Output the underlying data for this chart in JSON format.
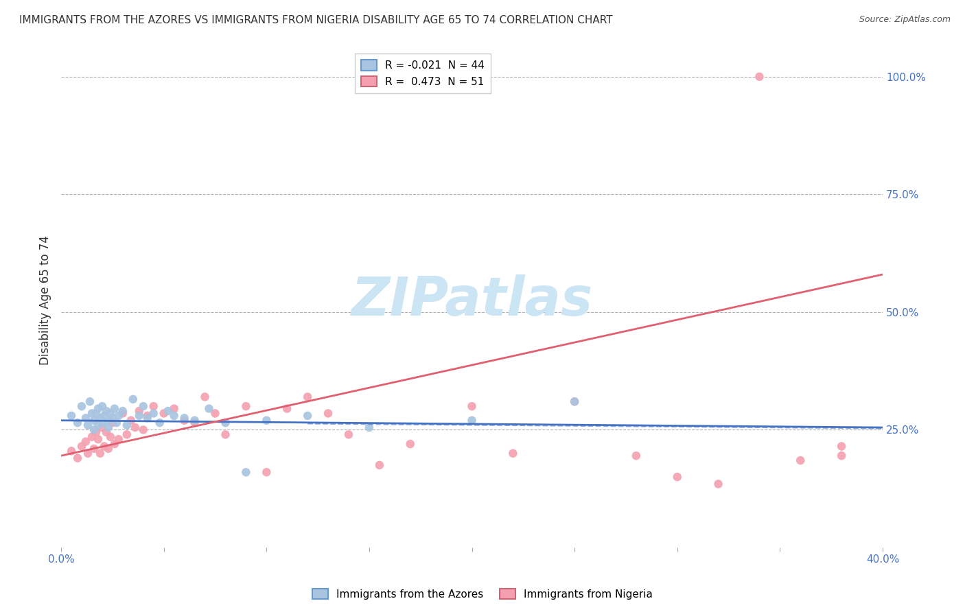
{
  "title": "IMMIGRANTS FROM THE AZORES VS IMMIGRANTS FROM NIGERIA DISABILITY AGE 65 TO 74 CORRELATION CHART",
  "source": "Source: ZipAtlas.com",
  "ylabel": "Disability Age 65 to 74",
  "legend_azores": "R = -0.021  N = 44",
  "legend_nigeria": "R =  0.473  N = 51",
  "legend_label_azores": "Immigrants from the Azores",
  "legend_label_nigeria": "Immigrants from Nigeria",
  "azores_color": "#a8c4e0",
  "nigeria_color": "#f4a0b0",
  "azores_line_color": "#4472c4",
  "nigeria_line_color": "#e06070",
  "background_color": "#ffffff",
  "watermark_color": "#cce5f5",
  "xlim": [
    0.0,
    0.4
  ],
  "ylim": [
    0.0,
    1.05
  ],
  "right_ytick_vals": [
    0.25,
    0.5,
    0.75,
    1.0
  ],
  "right_ytick_labels": [
    "25.0%",
    "50.0%",
    "75.0%",
    "100.0%"
  ],
  "gridline_y": [
    0.25,
    0.5,
    0.75,
    1.0
  ],
  "azores_scatter_x": [
    0.005,
    0.008,
    0.01,
    0.012,
    0.013,
    0.014,
    0.015,
    0.016,
    0.016,
    0.017,
    0.018,
    0.018,
    0.019,
    0.02,
    0.02,
    0.021,
    0.022,
    0.023,
    0.023,
    0.024,
    0.025,
    0.026,
    0.027,
    0.028,
    0.03,
    0.032,
    0.035,
    0.038,
    0.04,
    0.042,
    0.045,
    0.048,
    0.052,
    0.055,
    0.06,
    0.065,
    0.072,
    0.08,
    0.09,
    0.1,
    0.12,
    0.15,
    0.2,
    0.25
  ],
  "azores_scatter_y": [
    0.28,
    0.265,
    0.3,
    0.275,
    0.26,
    0.31,
    0.285,
    0.27,
    0.25,
    0.285,
    0.295,
    0.26,
    0.275,
    0.3,
    0.265,
    0.28,
    0.29,
    0.27,
    0.255,
    0.285,
    0.275,
    0.295,
    0.265,
    0.28,
    0.29,
    0.26,
    0.315,
    0.28,
    0.3,
    0.275,
    0.285,
    0.265,
    0.29,
    0.28,
    0.275,
    0.27,
    0.295,
    0.265,
    0.16,
    0.27,
    0.28,
    0.255,
    0.27,
    0.31
  ],
  "nigeria_scatter_x": [
    0.005,
    0.008,
    0.01,
    0.012,
    0.013,
    0.015,
    0.016,
    0.017,
    0.018,
    0.019,
    0.02,
    0.021,
    0.022,
    0.023,
    0.024,
    0.025,
    0.026,
    0.028,
    0.03,
    0.032,
    0.034,
    0.036,
    0.038,
    0.04,
    0.042,
    0.045,
    0.05,
    0.055,
    0.06,
    0.065,
    0.07,
    0.075,
    0.08,
    0.09,
    0.1,
    0.11,
    0.12,
    0.13,
    0.14,
    0.155,
    0.17,
    0.2,
    0.22,
    0.25,
    0.28,
    0.3,
    0.32,
    0.34,
    0.36,
    0.38,
    0.38
  ],
  "nigeria_scatter_y": [
    0.205,
    0.19,
    0.215,
    0.225,
    0.2,
    0.235,
    0.21,
    0.245,
    0.23,
    0.2,
    0.255,
    0.215,
    0.245,
    0.21,
    0.235,
    0.265,
    0.22,
    0.23,
    0.285,
    0.24,
    0.27,
    0.255,
    0.29,
    0.25,
    0.28,
    0.3,
    0.285,
    0.295,
    0.27,
    0.265,
    0.32,
    0.285,
    0.24,
    0.3,
    0.16,
    0.295,
    0.32,
    0.285,
    0.24,
    0.175,
    0.22,
    0.3,
    0.2,
    0.31,
    0.195,
    0.15,
    0.135,
    1.0,
    0.185,
    0.195,
    0.215
  ],
  "azores_line_x": [
    0.0,
    0.4
  ],
  "azores_line_y": [
    0.27,
    0.255
  ],
  "azores_line_dash": true,
  "nigeria_line_x": [
    0.0,
    0.4
  ],
  "nigeria_line_y": [
    0.195,
    0.58
  ],
  "marker_size": 9,
  "title_fontsize": 11,
  "source_fontsize": 9,
  "axis_fontsize": 11,
  "legend_fontsize": 11
}
